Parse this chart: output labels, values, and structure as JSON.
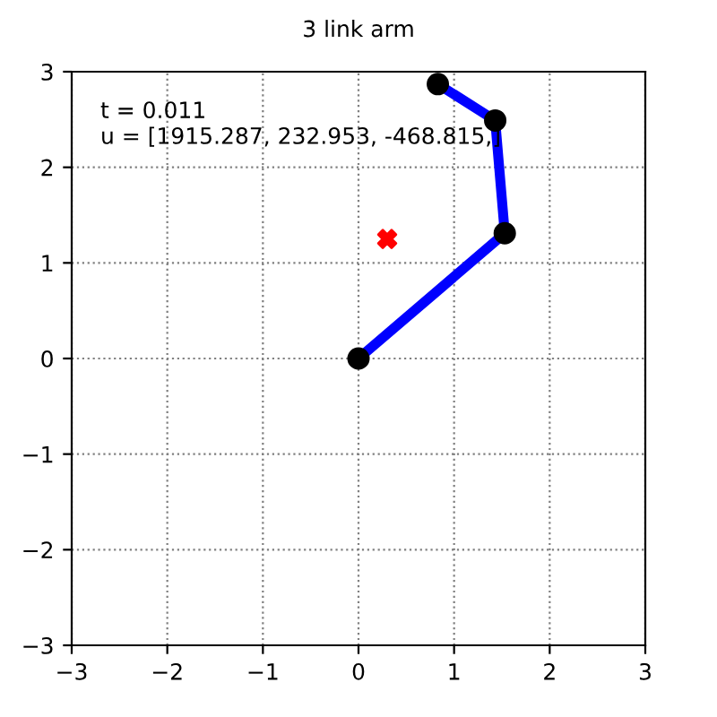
{
  "chart_data": {
    "type": "line",
    "title": "3 link arm",
    "series": [
      {
        "color": "#0000ff",
        "marker": "circle",
        "x": [
          0,
          1.53,
          1.43,
          0.83
        ],
        "values": [
          0,
          1.31,
          2.49,
          2.87
        ]
      },
      {
        "type": "scatter",
        "color": "#ff0000",
        "marker": "cross",
        "x": [
          0.3
        ],
        "values": [
          1.25
        ]
      }
    ],
    "annotations": [
      "t = 0.011",
      "u = [1915.287, 232.953, -468.815,]"
    ],
    "xlim": [
      -3,
      3
    ],
    "ylim": [
      -3,
      3
    ],
    "xticks": [
      {
        "value": -3,
        "label": "−3"
      },
      {
        "value": -2,
        "label": "−2"
      },
      {
        "value": -1,
        "label": "−1"
      },
      0,
      1,
      2,
      3
    ],
    "yticks": [
      {
        "value": -3,
        "label": "−3"
      },
      {
        "value": -2,
        "label": "−2"
      },
      {
        "value": -1,
        "label": "−1"
      },
      0,
      1,
      2,
      3
    ],
    "grid": true
  }
}
